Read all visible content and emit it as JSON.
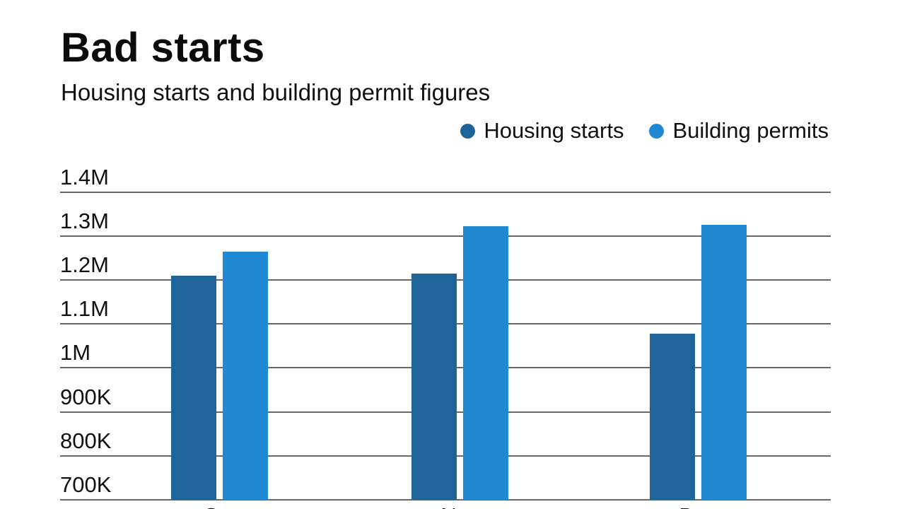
{
  "header": {
    "title": "Bad starts",
    "subtitle": "Housing starts and building permit figures"
  },
  "colors": {
    "housing_starts": "#1f6499",
    "building_permits": "#2189d4",
    "gridline": "#686868",
    "text": "#111111",
    "background": "#ffffff"
  },
  "chart_data": {
    "type": "bar",
    "title": "Bad starts",
    "subtitle": "Housing starts and building permit figures",
    "categories": [
      "Oct",
      "Nov",
      "Dec"
    ],
    "series": [
      {
        "name": "Housing starts",
        "color": "#1f6499",
        "values": [
          1210000,
          1214000,
          1078000
        ]
      },
      {
        "name": "Building permits",
        "color": "#2189d4",
        "values": [
          1265000,
          1322000,
          1326000
        ]
      }
    ],
    "ylabel": "",
    "xlabel": "",
    "ylim": [
      700000,
      1400000
    ],
    "ytick_interval": 100000,
    "yticks": [
      700000,
      800000,
      900000,
      1000000,
      1100000,
      1200000,
      1300000,
      1400000
    ],
    "ytick_labels": [
      "700K",
      "800K",
      "900K",
      "1M",
      "1.1M",
      "1.2M",
      "1.3M",
      "1.4M"
    ],
    "grid": true,
    "legend_position": "top-right",
    "note": "x-axis month labels are clipped by the bottom edge of the viewport"
  }
}
